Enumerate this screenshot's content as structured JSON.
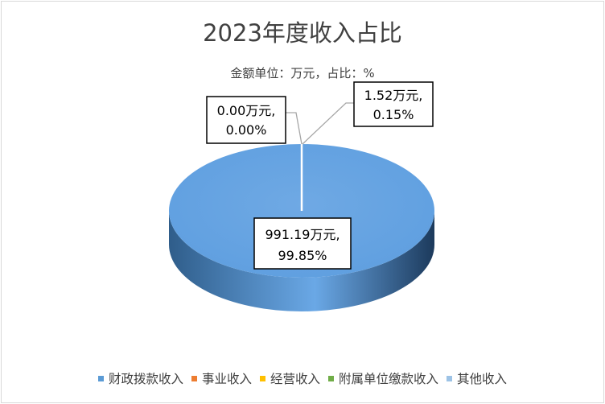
{
  "chart_data": {
    "type": "pie",
    "title": "2023年度收入占比",
    "subtitle": "金额单位：万元，占比：%",
    "unit": "万元",
    "legend_position": "bottom",
    "categories": [
      "财政拨款收入",
      "事业收入",
      "经营收入",
      "附属单位缴款收入",
      "其他收入"
    ],
    "values": [
      991.19,
      0,
      0,
      0,
      1.52
    ],
    "percents": [
      99.85,
      0,
      0,
      0,
      0.15
    ],
    "colors": [
      "#5b9bd5",
      "#ed7d31",
      "#ffc000",
      "#70ad47",
      "#9dc3e6"
    ],
    "data_labels": [
      {
        "value_text": "991.19万元,",
        "percent_text": "99.85%"
      },
      {
        "value_text": "0.00万元,",
        "percent_text": "0.00%"
      },
      {
        "value_text": "1.52万元,",
        "percent_text": "0.15%"
      }
    ]
  }
}
